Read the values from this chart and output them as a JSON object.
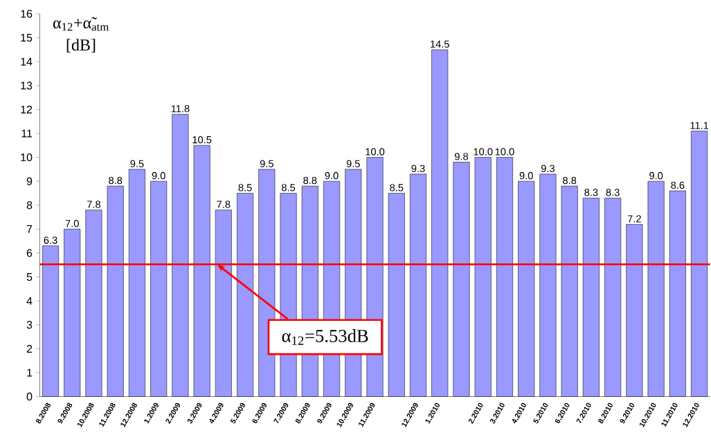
{
  "chart_data": {
    "type": "bar",
    "ylabel": "α$_{12}$+α̃$_{atm}$ [dB]",
    "categories": [
      "8.2008",
      "9.2008",
      "10.2008",
      "11.2008",
      "12.2008",
      "1.2009",
      "2.2009",
      "3.2009",
      "4.2009",
      "5.2009",
      "6.2009",
      "7.2009",
      "8.2009",
      "9.2009",
      "10.2009",
      "11.2009",
      null,
      "12.2009",
      "1.2010",
      null,
      "2.2010",
      "3.2010",
      "4.2010",
      "5.2010",
      "6.2010",
      "7.2010",
      "8.2010",
      "9.2010",
      "10.2010",
      "11.2010",
      "12.2010"
    ],
    "values": [
      6.3,
      7.0,
      7.8,
      8.8,
      9.5,
      9.0,
      11.8,
      10.5,
      7.8,
      8.5,
      9.5,
      8.5,
      8.8,
      9.0,
      9.5,
      10.0,
      8.5,
      9.3,
      14.5,
      9.8,
      10.0,
      10.0,
      9.0,
      9.3,
      8.8,
      8.3,
      8.3,
      7.2,
      9.0,
      8.6,
      11.1
    ],
    "value_labels": [
      "6.3",
      "7.0",
      "7.8",
      "8.8",
      "9.5",
      "9.0",
      "11.8",
      "10.5",
      "7.8",
      "8.5",
      "9.5",
      "8.5",
      "8.8",
      "9.0",
      "9.5",
      "10.0",
      "8.5",
      "9.3",
      "14.5",
      "9.8",
      "10.0",
      "10.0",
      "9.0",
      "9.3",
      "8.8",
      "8.3",
      "8.3",
      "7.2",
      "9.0",
      "8.6",
      "11.1"
    ],
    "color": "#9999ff",
    "ylim": [
      0,
      16
    ],
    "yticks": [
      0,
      1,
      2,
      3,
      4,
      5,
      6,
      7,
      8,
      9,
      10,
      11,
      12,
      13,
      14,
      15,
      16
    ],
    "grid": false,
    "ref_lines": [
      {
        "axis": "y",
        "value": 5.53,
        "label": "α$_{12}$=5.53dB",
        "color": "#ff0000"
      }
    ]
  }
}
